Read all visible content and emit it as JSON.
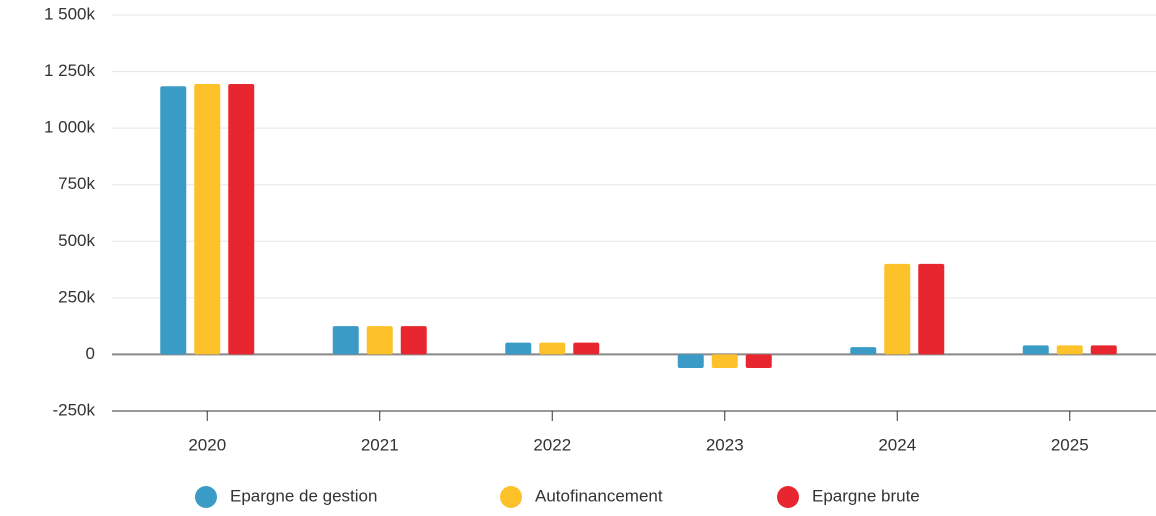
{
  "chart_data": {
    "type": "bar",
    "categories": [
      "2020",
      "2021",
      "2022",
      "2023",
      "2024",
      "2025"
    ],
    "series": [
      {
        "name": "Epargne de gestion",
        "color": "#3a9bc6",
        "values": [
          1185000,
          125000,
          52000,
          -60000,
          32000,
          40000
        ]
      },
      {
        "name": "Autofinancement",
        "color": "#fdc12a",
        "values": [
          1195000,
          125000,
          52000,
          -60000,
          400000,
          40000
        ]
      },
      {
        "name": "Epargne brute",
        "color": "#e8262f",
        "values": [
          1195000,
          125000,
          52000,
          -60000,
          400000,
          40000
        ]
      }
    ],
    "ylim": [
      -250000,
      1500000
    ],
    "yticks": [
      {
        "value": -250000,
        "label": "-250k"
      },
      0,
      {
        "value": 250000,
        "label": "250k"
      },
      {
        "value": 500000,
        "label": "500k"
      },
      {
        "value": 750000,
        "label": "750k"
      },
      {
        "value": 1000000,
        "label": "1 000k"
      },
      {
        "value": 1250000,
        "label": "1 250k"
      },
      {
        "value": 1500000,
        "label": "1 500k"
      }
    ],
    "grid": true
  }
}
